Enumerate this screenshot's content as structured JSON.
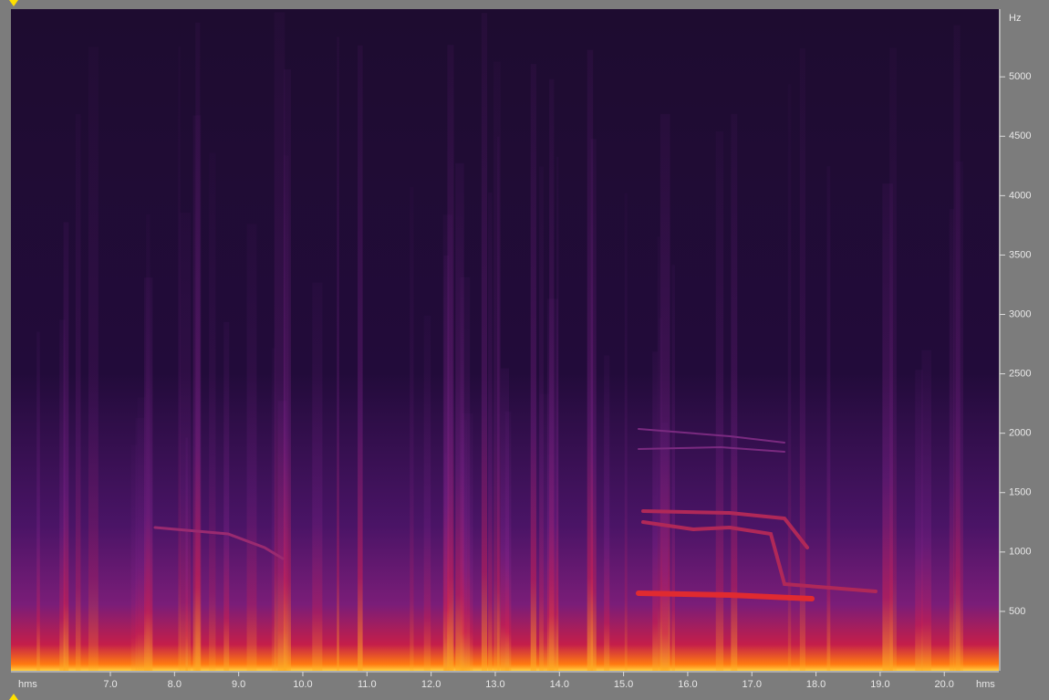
{
  "chart_data": {
    "type": "spectrogram",
    "x_unit": "hms",
    "y_unit": "Hz",
    "xlim": [
      5.45,
      20.85
    ],
    "xticks": [
      {
        "value": 7,
        "label": "7.0"
      },
      {
        "value": 8,
        "label": "8.0"
      },
      {
        "value": 9,
        "label": "9.0"
      },
      {
        "value": 10,
        "label": "10.0"
      },
      {
        "value": 11,
        "label": "11.0"
      },
      {
        "value": 12,
        "label": "12.0"
      },
      {
        "value": 13,
        "label": "13.0"
      },
      {
        "value": 14,
        "label": "14.0"
      },
      {
        "value": 15,
        "label": "15.0"
      },
      {
        "value": 16,
        "label": "16.0"
      },
      {
        "value": 17,
        "label": "17.0"
      },
      {
        "value": 18,
        "label": "18.0"
      },
      {
        "value": 19,
        "label": "19.0"
      },
      {
        "value": 20,
        "label": "20.0"
      }
    ],
    "ylim": [
      0,
      5570
    ],
    "yticks": [
      500,
      1000,
      1500,
      2000,
      2500,
      3000,
      3500,
      4000,
      4500,
      5000
    ]
  }
}
